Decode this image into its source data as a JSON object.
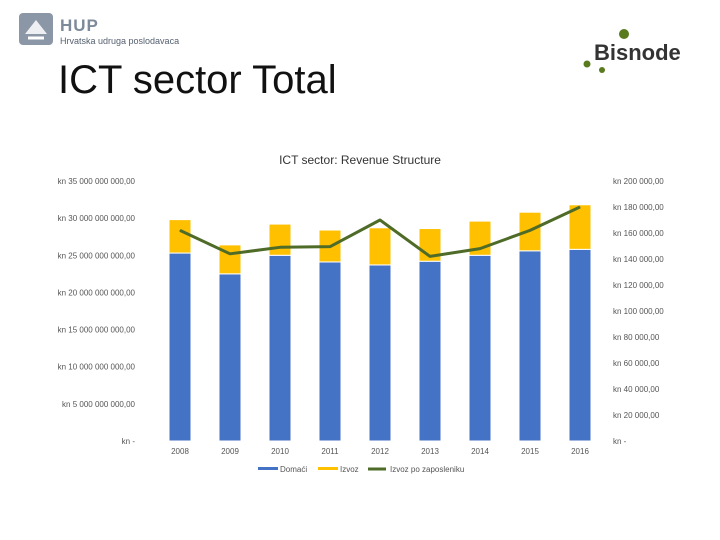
{
  "header": {
    "org_name": "HUP",
    "org_subtitle": "Hrvatska udruga poslodavaca",
    "page_title": "ICT sector Total",
    "brand_name": "Bisnode",
    "colors": {
      "hup_gray": "#7d8a99",
      "bisnode_green": "#5a7a1e",
      "bisnode_dark": "#333333"
    }
  },
  "chart_data": {
    "type": "bar",
    "stacked": true,
    "title": "ICT sector: Revenue Structure",
    "categories": [
      "2008",
      "2009",
      "2010",
      "2011",
      "2012",
      "2013",
      "2014",
      "2015",
      "2016"
    ],
    "series": [
      {
        "name": "Domaći",
        "axis": "left",
        "color": "#4472c4",
        "values": [
          25300000000,
          22500000000,
          25000000000,
          24100000000,
          23700000000,
          24200000000,
          25000000000,
          25600000000,
          25800000000
        ]
      },
      {
        "name": "Izvoz",
        "axis": "left",
        "color": "#ffc000",
        "values": [
          4500000000,
          3900000000,
          4200000000,
          4300000000,
          5000000000,
          4400000000,
          4600000000,
          5200000000,
          6000000000
        ]
      },
      {
        "name": "Izvoz po zaposleniku",
        "axis": "right",
        "type": "line",
        "color": "#4e6b28",
        "values": [
          162000,
          144000,
          149000,
          149500,
          170000,
          142000,
          148000,
          162000,
          180000
        ]
      }
    ],
    "left_axis": {
      "min": 0,
      "max": 35000000000,
      "tick_labels": [
        "kn -",
        "kn 5 000 000 000,00",
        "kn 10 000 000 000,00",
        "kn 15 000 000 000,00",
        "kn 20 000 000 000,00",
        "kn 25 000 000 000,00",
        "kn 30 000 000 000,00",
        "kn 35 000 000 000,00"
      ]
    },
    "right_axis": {
      "min": 0,
      "max": 200000,
      "tick_labels": [
        "kn -",
        "kn 20 000,00",
        "kn 40 000,00",
        "kn 60 000,00",
        "kn 80 000,00",
        "kn 100 000,00",
        "kn 120 000,00",
        "kn 140 000,00",
        "kn 160 000,00",
        "kn 180 000,00",
        "kn 200 000,00"
      ]
    },
    "legend_position": "bottom",
    "grid": false
  }
}
